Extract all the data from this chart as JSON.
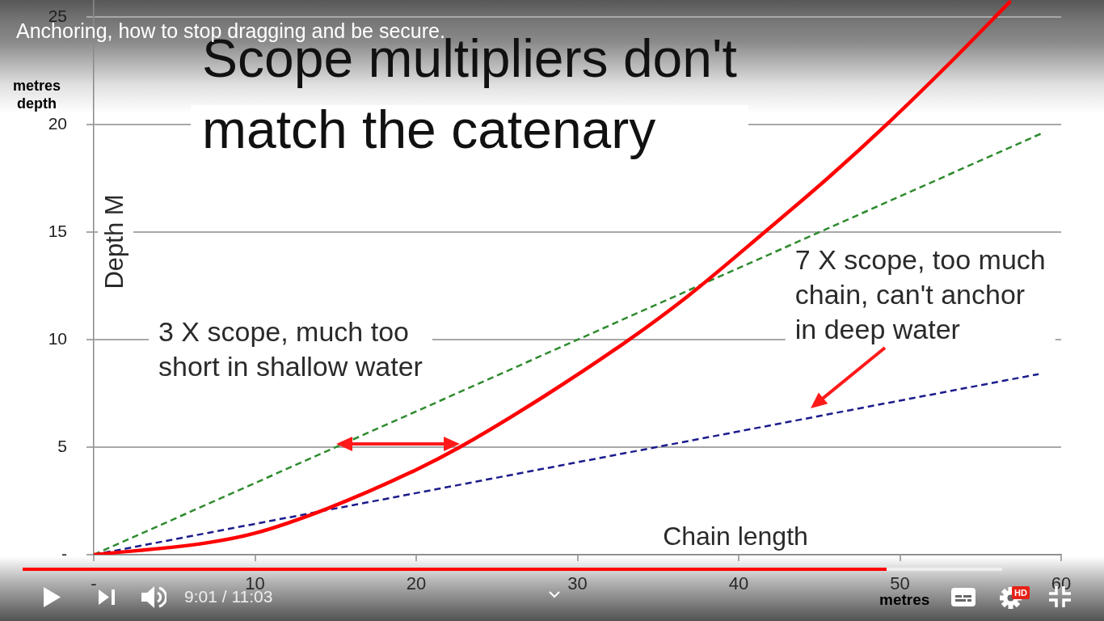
{
  "chart_data": {
    "type": "line",
    "title": "Scope multipliers don't\nmatch the catenary",
    "xlabel": "Chain length",
    "ylabel": "Depth M",
    "series": [
      {
        "color": "#ff0000",
        "line_style": "solid",
        "x": [
          0,
          7,
          10,
          14.5,
          20,
          22.7,
          28,
          33.2,
          36.8,
          41.6,
          45.5,
          49.3,
          53,
          56.8
        ],
        "values": [
          0,
          0.55,
          1.0,
          2.15,
          3.95,
          5.0,
          7.4,
          10.0,
          12.0,
          15.0,
          17.5,
          20.1,
          22.8,
          25.7
        ]
      },
      {
        "color": "#2e8b2e",
        "line_style": "dashed",
        "x": [
          0,
          58.8
        ],
        "values": [
          0,
          19.6
        ]
      },
      {
        "color": "#1c1c8c",
        "line_style": "dashed",
        "x": [
          0,
          58.6
        ],
        "values": [
          0,
          8.4
        ]
      }
    ],
    "xlim": [
      0,
      60
    ],
    "xticks": [
      {
        "value": 0,
        "label": "-"
      },
      10,
      20,
      30,
      40,
      50,
      60
    ],
    "ylim": [
      0,
      25.8
    ],
    "yticks": [
      {
        "value": 0,
        "label": "-"
      },
      5,
      10,
      15,
      20,
      25
    ],
    "grid": "y",
    "marker": "none",
    "annotations": [
      "Anchoring, how to stop dragging and be secure.",
      "3 X scope, much too\nshort in shallow water",
      {
        "text": "7 X scope, too much\nchain, can't anchor\nin deep water",
        "x": 44.5,
        "y": 6.4
      },
      "metres\ndepth",
      "metres",
      "9:01 / 11:03",
      "HD"
    ]
  }
}
